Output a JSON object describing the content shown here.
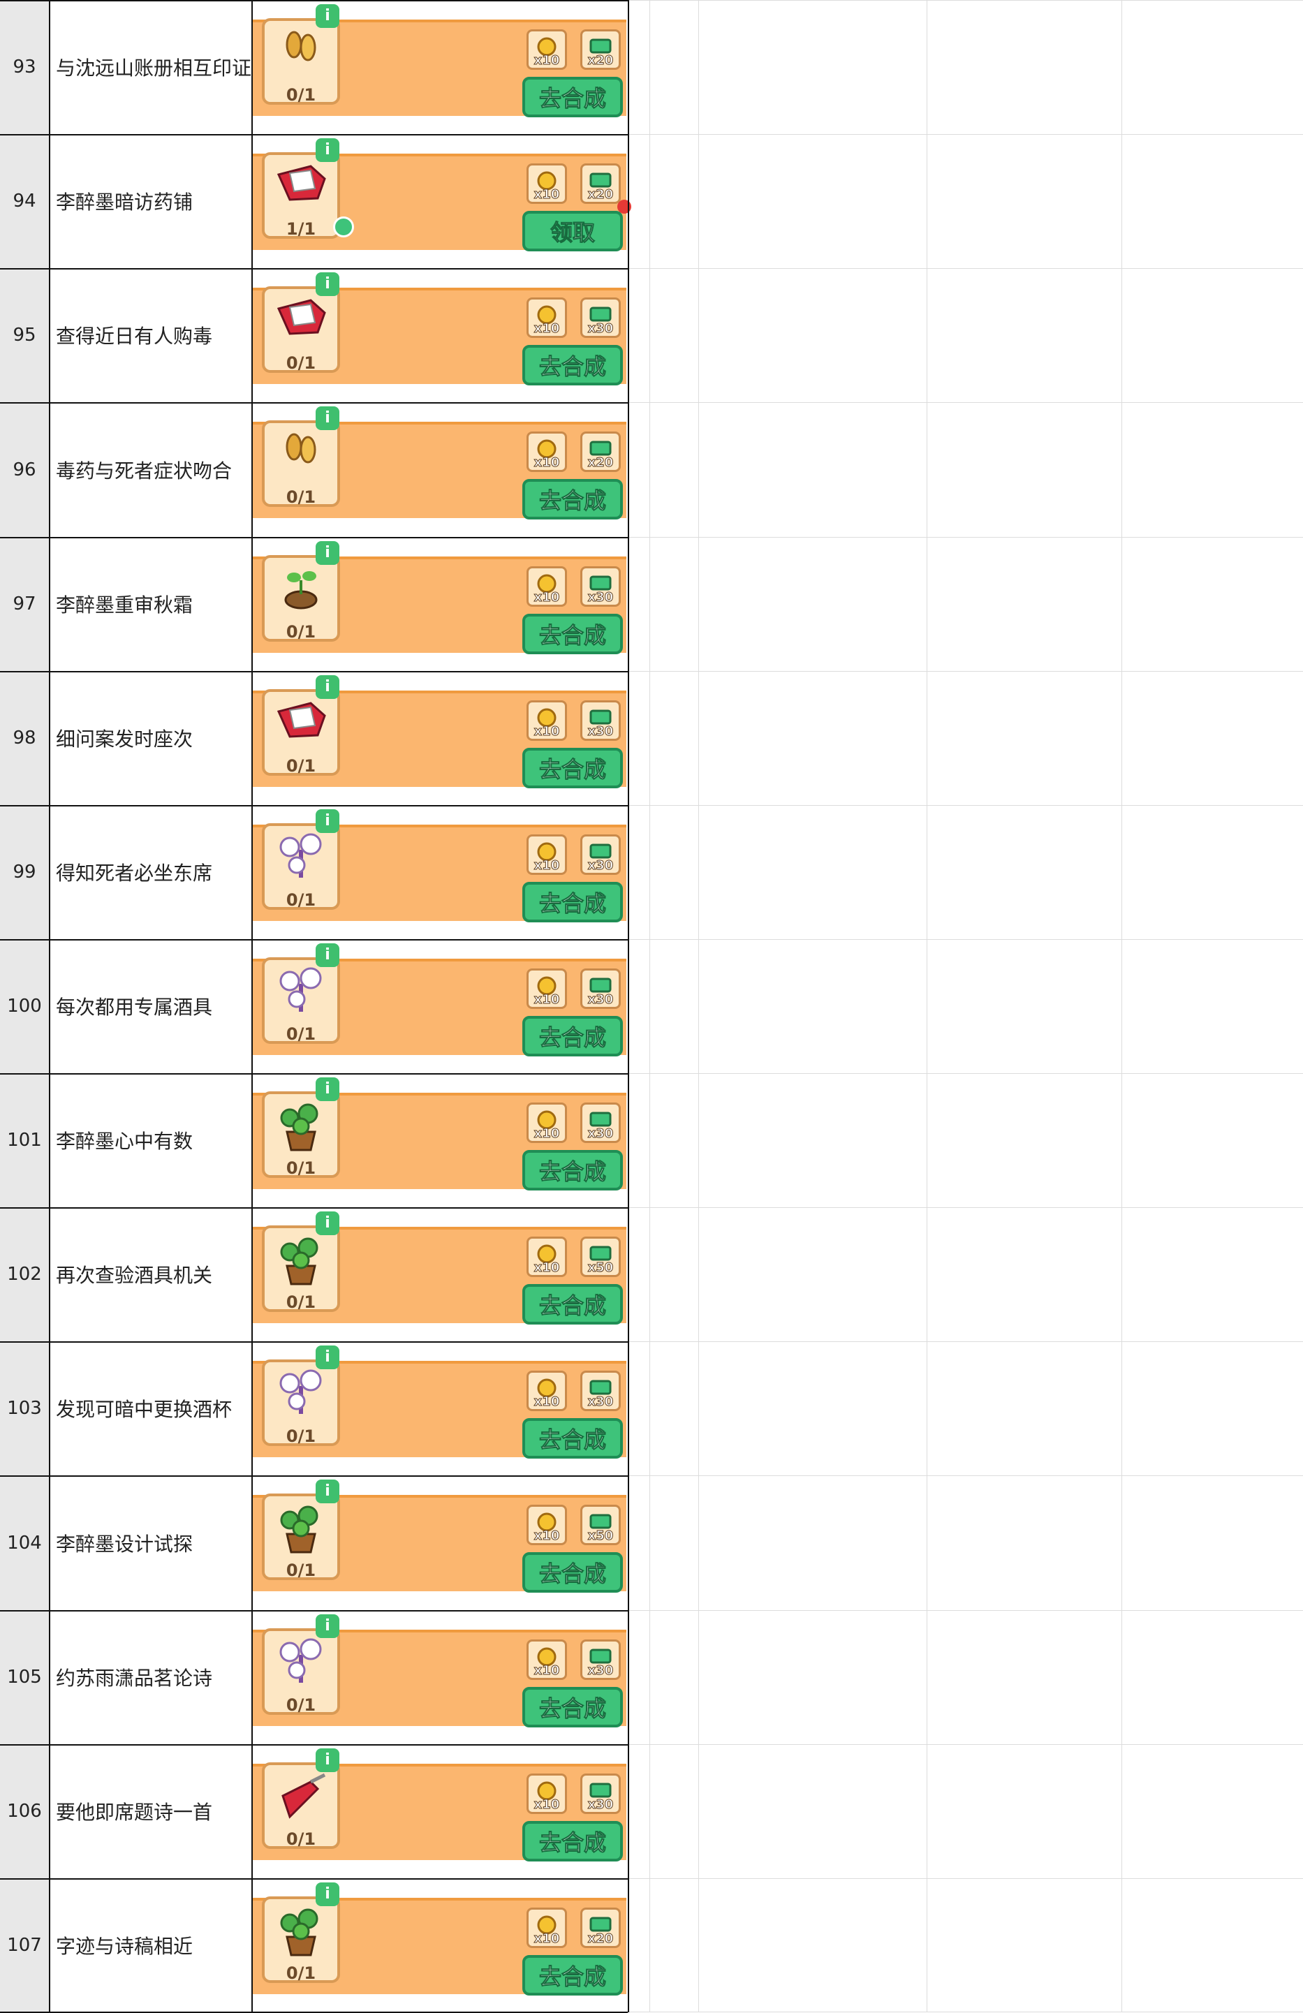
{
  "rows": [
    {
      "id": 93,
      "task": "与沈远山账册相互印证",
      "progress": "0/1",
      "rewards": [
        "x10",
        "x20"
      ],
      "button": "去合成"
    },
    {
      "id": 94,
      "task": "李醉墨暗访药铺",
      "progress": "1/1",
      "rewards": [
        "x10",
        "x20"
      ],
      "button": "领取"
    },
    {
      "id": 95,
      "task": "查得近日有人购毒",
      "progress": "0/1",
      "rewards": [
        "x10",
        "x30"
      ],
      "button": "去合成"
    },
    {
      "id": 96,
      "task": "毒药与死者症状吻合",
      "progress": "0/1",
      "rewards": [
        "x10",
        "x20"
      ],
      "button": "去合成"
    },
    {
      "id": 97,
      "task": "李醉墨重审秋霜",
      "progress": "0/1",
      "rewards": [
        "x10",
        "x30"
      ],
      "button": "去合成"
    },
    {
      "id": 98,
      "task": "细问案发时座次",
      "progress": "0/1",
      "rewards": [
        "x10",
        "x30"
      ],
      "button": "去合成"
    },
    {
      "id": 99,
      "task": "得知死者必坐东席",
      "progress": "0/1",
      "rewards": [
        "x10",
        "x30"
      ],
      "button": "去合成"
    },
    {
      "id": 100,
      "task": "每次都用专属酒具",
      "progress": "0/1",
      "rewards": [
        "x10",
        "x30"
      ],
      "button": "去合成"
    },
    {
      "id": 101,
      "task": "李醉墨心中有数",
      "progress": "0/1",
      "rewards": [
        "x10",
        "x30"
      ],
      "button": "去合成"
    },
    {
      "id": 102,
      "task": "再次查验酒具机关",
      "progress": "0/1",
      "rewards": [
        "x10",
        "x50"
      ],
      "button": "去合成"
    },
    {
      "id": 103,
      "task": "发现可暗中更换酒杯",
      "progress": "0/1",
      "rewards": [
        "x10",
        "x30"
      ],
      "button": "去合成"
    },
    {
      "id": 104,
      "task": "李醉墨设计试探",
      "progress": "0/1",
      "rewards": [
        "x10",
        "x50"
      ],
      "button": "去合成"
    },
    {
      "id": 105,
      "task": "约苏雨潇品茗论诗",
      "progress": "0/1",
      "rewards": [
        "x10",
        "x30"
      ],
      "button": "去合成"
    },
    {
      "id": 106,
      "task": "要他即席题诗一首",
      "progress": "0/1",
      "rewards": [
        "x10",
        "x30"
      ],
      "button": "去合成"
    },
    {
      "id": 107,
      "task": "字迹与诗稿相近",
      "progress": "0/1",
      "rewards": [
        "x10",
        "x20"
      ],
      "button": "去合成"
    }
  ]
}
